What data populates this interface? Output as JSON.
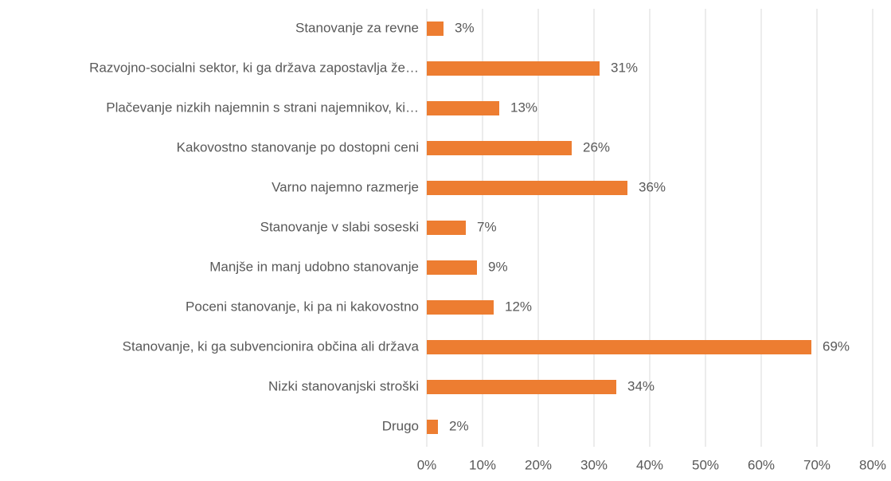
{
  "chart_data": {
    "type": "bar",
    "orientation": "horizontal",
    "categories": [
      "Stanovanje za revne",
      "Razvojno-socialni sektor, ki ga država zapostavlja že…",
      "Plačevanje nizkih najemnin s strani najemnikov, ki…",
      "Kakovostno stanovanje po dostopni ceni",
      "Varno najemno razmerje",
      "Stanovanje v slabi soseski",
      "Manjše in manj udobno stanovanje",
      "Poceni stanovanje, ki pa ni kakovostno",
      "Stanovanje, ki ga subvencionira občina ali država",
      "Nizki stanovanjski stroški",
      "Drugo"
    ],
    "values": [
      3,
      31,
      13,
      26,
      36,
      7,
      9,
      12,
      69,
      34,
      2
    ],
    "value_labels": [
      "3%",
      "31%",
      "13%",
      "26%",
      "36%",
      "7%",
      "9%",
      "12%",
      "69%",
      "34%",
      "2%"
    ],
    "color": "#ed7d31",
    "xlim": [
      0,
      80
    ],
    "xticks": [
      {
        "value": 0,
        "label": "0%"
      },
      {
        "value": 10,
        "label": "10%"
      },
      {
        "value": 20,
        "label": "20%"
      },
      {
        "value": 30,
        "label": "30%"
      },
      {
        "value": 40,
        "label": "40%"
      },
      {
        "value": 50,
        "label": "50%"
      },
      {
        "value": 60,
        "label": "60%"
      },
      {
        "value": 70,
        "label": "70%"
      },
      {
        "value": 80,
        "label": "80%"
      }
    ],
    "grid": true
  }
}
